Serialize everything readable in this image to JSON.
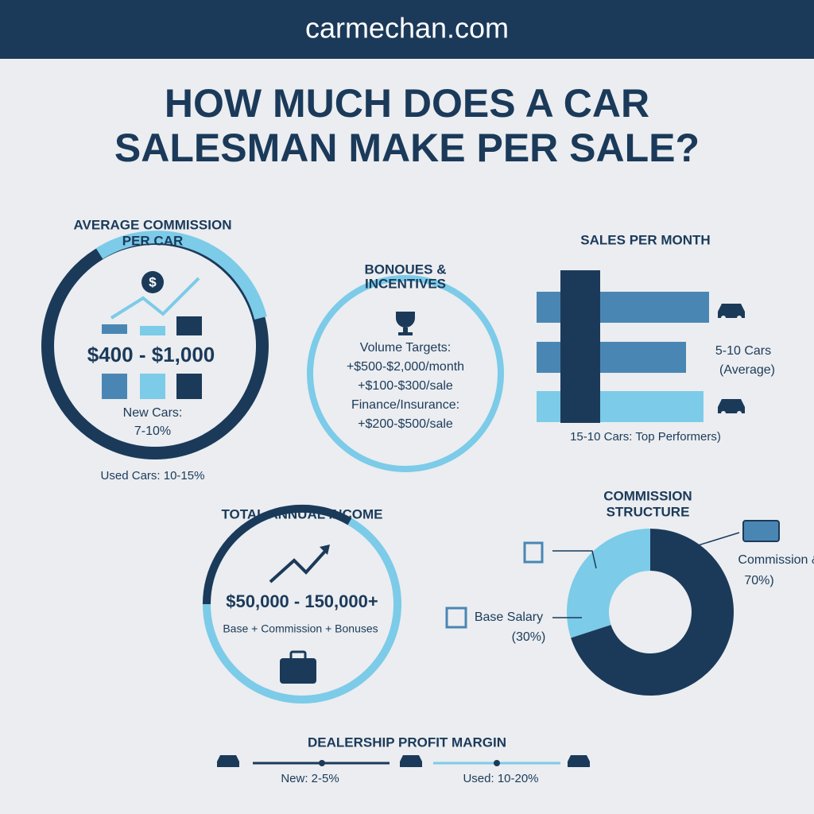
{
  "header": {
    "site": "carmechan.com"
  },
  "title": {
    "lines": [
      "HOW MUCH DOES A CAR",
      "SALESMAN MAKE PER SALE?"
    ]
  },
  "commission": {
    "title": [
      "AVERAGE COMMISSION",
      "PER CAR"
    ],
    "amount": "$400 - $1,000",
    "new_cars": [
      "New Cars:",
      "7-10%"
    ],
    "used_cars": "Used Cars: 10-15%"
  },
  "bonuses": {
    "title": [
      "BONOUES &",
      "INCENTIVES"
    ],
    "lines": [
      "Volume Targets:",
      "+$500-$2,000/month",
      "+$100-$300/sale",
      "Finance/Insurance:",
      "+$200-$500/sale"
    ]
  },
  "sales": {
    "title": "SALES PER MONTH",
    "average": [
      "5-10 Cars",
      "(Average)"
    ],
    "top": "15-10 Cars: Top Performers)"
  },
  "income": {
    "title": "TOTAL ANNUAL INCOME",
    "amount": "$50,000 - 150,000+",
    "note": "Base + Commission + Bonuses"
  },
  "structure": {
    "title": [
      "COMMISSION",
      "STRUCTURE"
    ],
    "segments": [
      {
        "label": [
          "Commission &",
          "70%)"
        ],
        "value": 70,
        "color": "#1b3a5a"
      },
      {
        "label": [
          "Base Salary",
          "(30%)"
        ],
        "value": 30,
        "color": "#7ccbe8"
      }
    ]
  },
  "margin": {
    "title": "DEALERSHIP PROFIT MARGIN",
    "new": "New: 2-5%",
    "used": "Used: 10-20%"
  }
}
